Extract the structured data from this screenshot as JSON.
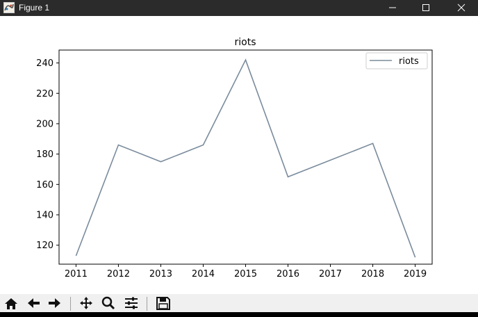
{
  "window": {
    "title": "Figure 1",
    "app_icon": "matplotlib-figure-icon",
    "controls": [
      "minimize-icon",
      "maximize-icon",
      "close-icon"
    ]
  },
  "toolbar": {
    "buttons": [
      "home-icon",
      "back-arrow-icon",
      "forward-arrow-icon",
      "pan-icon",
      "zoom-icon",
      "subplots-config-icon",
      "save-icon"
    ]
  },
  "chart_data": {
    "type": "line",
    "title": "riots",
    "xlabel": "",
    "ylabel": "",
    "x": [
      "2011",
      "2012",
      "2013",
      "2014",
      "2015",
      "2016",
      "2017",
      "2018",
      "2019"
    ],
    "series": [
      {
        "name": "riots",
        "values": [
          113,
          186,
          175,
          186,
          242,
          165,
          176,
          187,
          112
        ],
        "color": "#7a8b9c"
      }
    ],
    "yticks": [
      "120",
      "140",
      "160",
      "180",
      "200",
      "220",
      "240"
    ],
    "xlim": [
      2010.6,
      2019.4
    ],
    "ylim": [
      107.5,
      248.5
    ],
    "grid": false,
    "legend_position": "top-right"
  }
}
